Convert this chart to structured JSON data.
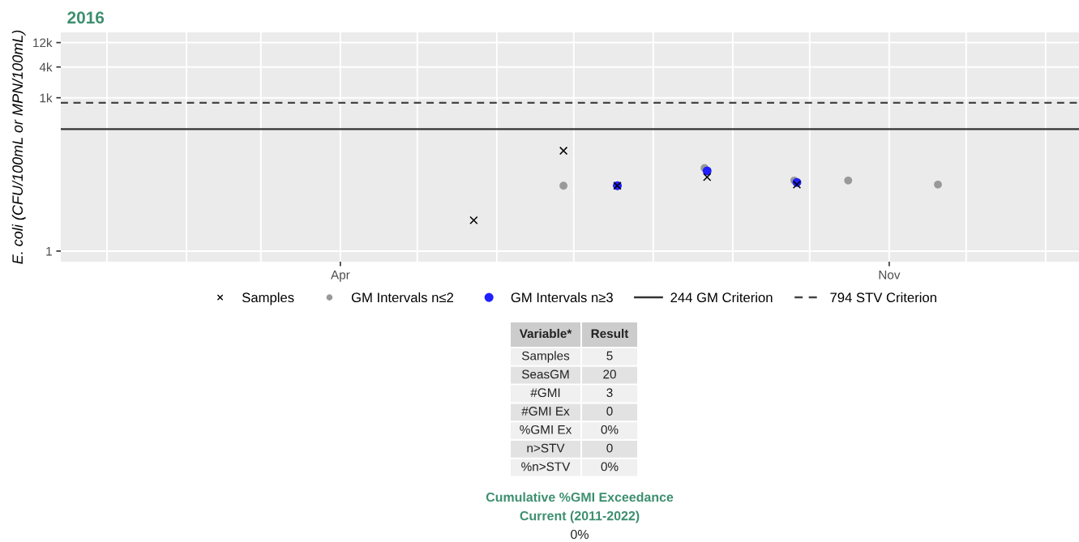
{
  "chart_data": [
    {
      "type": "scatter",
      "title": "2016",
      "ylabel": "E. coli (CFU/100mL or MPN/100mL)",
      "log": "y",
      "grid": true,
      "legend": "bottom",
      "xlim": [
        "2015-12-14",
        "2017-01-14"
      ],
      "xticks": [
        {
          "value": "2016-01-01",
          "label": null
        },
        {
          "value": "2016-02-01",
          "label": null
        },
        {
          "value": "2016-03-01",
          "label": null
        },
        {
          "value": "2016-04-01",
          "label": "Apr"
        },
        {
          "value": "2016-05-01",
          "label": null
        },
        {
          "value": "2016-06-01",
          "label": null
        },
        {
          "value": "2016-07-01",
          "label": null
        },
        {
          "value": "2016-08-01",
          "label": null
        },
        {
          "value": "2016-09-01",
          "label": null
        },
        {
          "value": "2016-10-01",
          "label": null
        },
        {
          "value": "2016-11-01",
          "label": "Nov"
        },
        {
          "value": "2016-12-01",
          "label": null
        },
        {
          "value": "2017-01-01",
          "label": null
        }
      ],
      "ylim": [
        0.62,
        19000
      ],
      "yticks": [
        1,
        {
          "value": 1000,
          "label": "1k"
        },
        {
          "value": 4000,
          "label": "4k"
        },
        {
          "value": 12000,
          "label": "12k"
        }
      ],
      "series": [
        {
          "name": "GM Intervals n≤2",
          "color": "#999999",
          "marker": "circle",
          "x": [
            "2016-06-27",
            "2016-08-21",
            "2016-09-25",
            "2016-10-16",
            "2016-11-20"
          ],
          "values": [
            19,
            42,
            24,
            24,
            20
          ]
        },
        {
          "name": "GM Intervals n≥3",
          "color": "#1f1fff",
          "marker": "circle",
          "x": [
            "2016-07-18",
            "2016-08-22",
            "2016-09-26"
          ],
          "values": [
            19,
            37,
            22
          ]
        },
        {
          "name": "Samples",
          "color": "#000000",
          "marker": "cross",
          "x": [
            "2016-05-23",
            "2016-06-27",
            "2016-07-18",
            "2016-08-22",
            "2016-09-26"
          ],
          "values": [
            4,
            92,
            19,
            28,
            20
          ]
        }
      ],
      "ref_lines": [
        {
          "axis": "y",
          "value": 244,
          "label": "244 GM Criterion",
          "color": "#333333",
          "line_style": "solid"
        },
        {
          "axis": "y",
          "value": 794,
          "label": "794 STV Criterion",
          "color": "#444444",
          "line_style": "dashed"
        }
      ]
    },
    {
      "type": "other",
      "annotations": [
        "Variable*",
        "Result",
        "Samples",
        "5",
        "SeasGM",
        "20",
        "#GMI",
        "3",
        "#GMI Ex",
        "0",
        "%GMI Ex",
        "0%",
        "n>STV",
        "0",
        "%n>STV",
        "0%"
      ]
    },
    {
      "type": "other",
      "title": "Cumulative %GMI Exceedance",
      "subtitle": "Current (2011-2022)",
      "annotations": [
        "0%"
      ]
    }
  ]
}
